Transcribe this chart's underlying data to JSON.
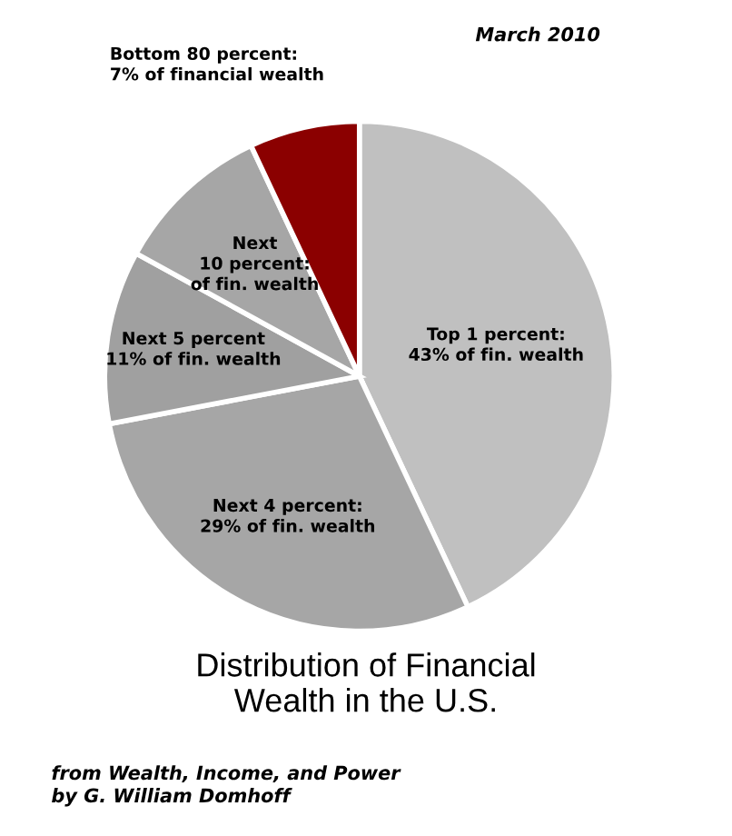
{
  "chart_data": {
    "type": "pie",
    "title": "Distribution of Financial\nWealth in the U.S.",
    "categories": [
      "Top 1 percent:\n43% of fin. wealth",
      "Next 4 percent:\n29% of fin. wealth",
      "Next 5 percent\n11% of fin. wealth",
      "Next\n10 percent:\nof fin. wealth",
      "Bottom 80 percent:\n7% of financial wealth"
    ],
    "values": [
      43,
      29,
      11,
      10,
      7
    ],
    "colors": [
      "#c0c0c0",
      "#a6a6a6",
      "#a0a0a0",
      "#a6a6a6",
      "#8b0000"
    ],
    "annotations": [
      "March 2010",
      "from Wealth, Income, and Power\nby G. William Domhoff"
    ]
  }
}
